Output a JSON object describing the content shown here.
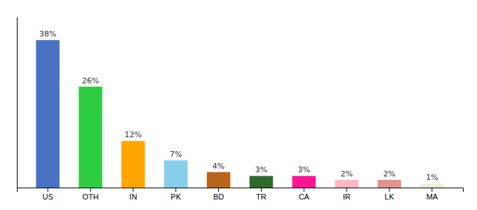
{
  "chart_data": {
    "type": "bar",
    "categories": [
      "US",
      "OTH",
      "IN",
      "PK",
      "BD",
      "TR",
      "CA",
      "IR",
      "LK",
      "MA"
    ],
    "values": [
      38,
      26,
      12,
      7,
      4,
      3,
      3,
      2,
      2,
      1
    ],
    "value_labels": [
      "38%",
      "26%",
      "12%",
      "7%",
      "4%",
      "3%",
      "3%",
      "2%",
      "2%",
      "1%"
    ],
    "colors": [
      "#4A72C4",
      "#2ECC40",
      "#FFA500",
      "#87CEEB",
      "#B8651A",
      "#2D6A2D",
      "#FF1493",
      "#FFB6C1",
      "#E0948A",
      "#F0EDD8"
    ],
    "ylim": [
      0,
      44
    ],
    "data_labels": true,
    "tick_labels": "x"
  }
}
